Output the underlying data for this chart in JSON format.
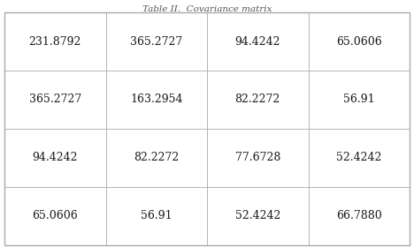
{
  "title": "Table II.  Covariance matrix",
  "matrix": [
    [
      "231.8792",
      "365.2727",
      "94.4242",
      "65.0606"
    ],
    [
      "365.2727",
      "163.2954",
      "82.2272",
      "56.91"
    ],
    [
      "94.4242",
      "82.2272",
      "77.6728",
      "52.4242"
    ],
    [
      "65.0606",
      "56.91",
      "52.4242",
      "66.7880"
    ]
  ],
  "title_fontsize": 7.5,
  "cell_fontsize": 9,
  "bg_color": "#ffffff",
  "text_color": "#1a1a1a",
  "line_color": "#aaaaaa",
  "title_color": "#555555"
}
